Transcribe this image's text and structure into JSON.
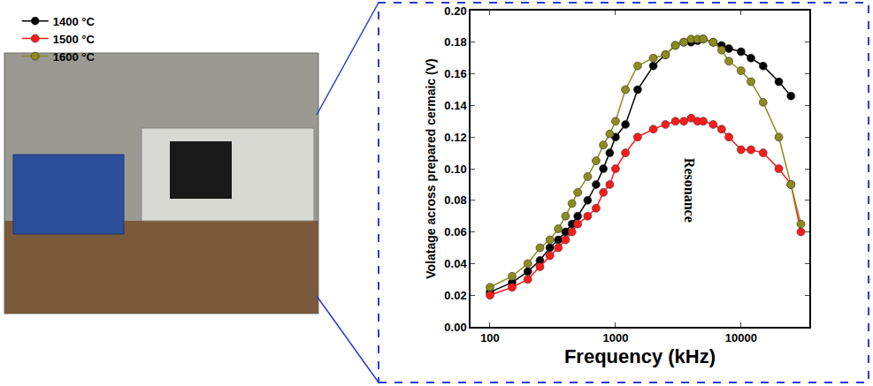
{
  "chart_data": {
    "type": "line",
    "x_label": "Frequency (kHz)",
    "y_label": "Volatage across prepared cermaic (V)",
    "x": [
      100,
      150,
      200,
      250,
      300,
      350,
      400,
      450,
      500,
      600,
      700,
      800,
      900,
      1000,
      1200,
      1500,
      2000,
      2500,
      3000,
      3500,
      4000,
      4500,
      5000,
      6000,
      7000,
      8000,
      10000,
      12000,
      15000,
      20000,
      25000,
      30000
    ],
    "series": [
      {
        "name": "1400 °C",
        "color": "#000000",
        "marker": "circle",
        "line_style": "solid",
        "values": [
          0.022,
          0.028,
          0.035,
          0.042,
          0.05,
          0.055,
          0.06,
          0.065,
          0.07,
          0.08,
          0.09,
          0.1,
          0.11,
          0.12,
          0.128,
          0.15,
          0.165,
          0.172,
          0.178,
          0.18,
          0.18,
          0.181,
          0.182,
          0.18,
          0.178,
          0.176,
          0.174,
          0.17,
          0.165,
          0.155,
          0.146,
          null
        ]
      },
      {
        "name": "1500 °C",
        "color": "#ff1a1a",
        "marker": "circle",
        "line_style": "solid",
        "values": [
          0.02,
          0.025,
          0.03,
          0.038,
          0.045,
          0.05,
          0.055,
          0.06,
          0.065,
          0.07,
          0.075,
          0.085,
          0.09,
          0.1,
          0.11,
          0.12,
          0.125,
          0.128,
          0.13,
          0.13,
          0.132,
          0.13,
          0.13,
          0.128,
          0.125,
          0.12,
          0.112,
          0.112,
          0.11,
          0.1,
          0.09,
          0.06
        ]
      },
      {
        "name": "1600 °C",
        "color": "#8c8c1e",
        "marker": "circle",
        "line_style": "solid",
        "values": [
          0.025,
          0.032,
          0.04,
          0.05,
          0.055,
          0.062,
          0.07,
          0.078,
          0.085,
          0.095,
          0.105,
          0.115,
          0.122,
          0.13,
          0.15,
          0.165,
          0.17,
          0.172,
          0.178,
          0.18,
          0.182,
          0.182,
          0.182,
          0.18,
          0.175,
          0.168,
          0.162,
          0.155,
          0.142,
          0.12,
          0.09,
          0.065
        ]
      }
    ],
    "log": "x",
    "xlim": [
      70,
      35000
    ],
    "xticks": [
      100,
      1000,
      10000
    ],
    "ylim": [
      0,
      0.2
    ],
    "yticks": [
      {
        "value": 0,
        "label": "0.00"
      },
      {
        "value": 0.02,
        "label": "0.02"
      },
      {
        "value": 0.04,
        "label": "0.04"
      },
      {
        "value": 0.06,
        "label": "0.06"
      },
      {
        "value": 0.08,
        "label": "0.08"
      },
      {
        "value": 0.1,
        "label": "0.10"
      },
      {
        "value": 0.12,
        "label": "0.12"
      },
      {
        "value": 0.14,
        "label": "0.14"
      },
      {
        "value": 0.16,
        "label": "0.16"
      },
      {
        "value": 0.18,
        "label": "0.18"
      },
      {
        "value": 0.2,
        "label": "0.20"
      }
    ],
    "grid": false,
    "legend": "top-left",
    "annotations": [
      {
        "text": "Resonance",
        "x_range": [
          2200,
          7000
        ]
      }
    ]
  }
}
